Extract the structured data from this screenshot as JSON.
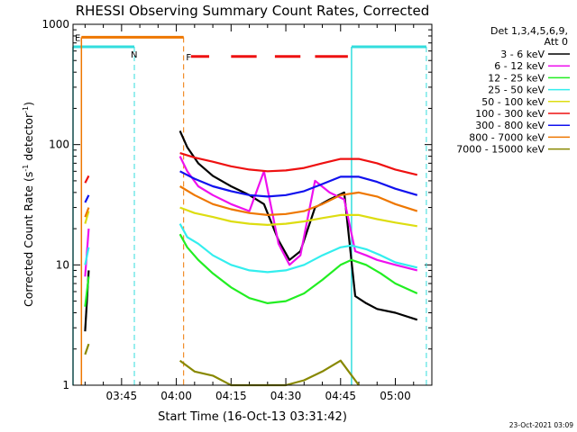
{
  "chart_data": {
    "type": "line",
    "title": "RHESSI Observing Summary Count Rates, Corrected",
    "xlabel": "Start Time (16-Oct-13 03:31:42)",
    "ylabel_main": "Corrected Count Rate (s",
    "ylabel_sup1": "-1",
    "ylabel_mid": " detector",
    "ylabel_sup2": "-1",
    "ylabel_end": ")",
    "footer": "23-Oct-2021 03:09",
    "yscale": "log",
    "xlim": [
      "03:31:42",
      "05:10:00"
    ],
    "ylim": [
      1,
      1000
    ],
    "x_ticks": [
      "03:45",
      "04:00",
      "04:15",
      "04:30",
      "04:45",
      "05:00"
    ],
    "y_ticks": [
      "1",
      "10",
      "100",
      "1000"
    ],
    "legend_header": [
      "Det 1,3,4,5,6,9,",
      "Att 0"
    ],
    "legend_position": "right",
    "flags": [
      {
        "label": "N",
        "color": "#33dddd"
      },
      {
        "label": "E",
        "color": "#ee7700"
      },
      {
        "label": "F",
        "color": "#ee1111"
      }
    ],
    "series": [
      {
        "name": "3 - 6 keV",
        "color": "#000000",
        "x": [
          "03:35",
          "03:36",
          "04:01",
          "04:03",
          "04:06",
          "04:10",
          "04:15",
          "04:20",
          "04:24",
          "04:28",
          "04:31",
          "04:34",
          "04:38",
          "04:42",
          "04:46",
          "04:49",
          "04:52",
          "04:55",
          "05:00",
          "05:06"
        ],
        "y": [
          2.8,
          9,
          130,
          95,
          70,
          55,
          45,
          38,
          32,
          16,
          11,
          13,
          30,
          35,
          40,
          5.5,
          4.8,
          4.3,
          4.0,
          3.5
        ]
      },
      {
        "name": "6 - 12 keV",
        "color": "#ee11ee",
        "x": [
          "03:35",
          "03:36",
          "04:01",
          "04:03",
          "04:06",
          "04:10",
          "04:15",
          "04:20",
          "04:24",
          "04:28",
          "04:31",
          "04:34",
          "04:38",
          "04:42",
          "04:46",
          "04:49",
          "04:52",
          "04:55",
          "05:00",
          "05:06"
        ],
        "y": [
          8,
          20,
          80,
          60,
          45,
          38,
          32,
          28,
          60,
          15,
          10,
          12,
          50,
          40,
          35,
          13,
          12,
          11,
          10,
          9
        ]
      },
      {
        "name": "12 - 25 keV",
        "color": "#22ee22",
        "x": [
          "03:35",
          "03:36",
          "04:01",
          "04:03",
          "04:06",
          "04:10",
          "04:15",
          "04:20",
          "04:25",
          "04:30",
          "04:35",
          "04:40",
          "04:45",
          "04:48",
          "04:52",
          "04:56",
          "05:00",
          "05:06"
        ],
        "y": [
          4.5,
          8,
          18,
          14,
          11,
          8.5,
          6.5,
          5.3,
          4.8,
          5.0,
          5.8,
          7.5,
          10,
          11,
          10,
          8.5,
          7,
          5.8
        ]
      },
      {
        "name": "25 - 50 keV",
        "color": "#33eeee",
        "x": [
          "03:35",
          "03:36",
          "04:01",
          "04:03",
          "04:06",
          "04:10",
          "04:15",
          "04:20",
          "04:25",
          "04:30",
          "04:35",
          "04:40",
          "04:45",
          "04:48",
          "04:52",
          "04:56",
          "05:00",
          "05:06"
        ],
        "y": [
          10,
          14,
          22,
          17,
          15,
          12,
          10,
          9,
          8.7,
          9,
          10,
          12,
          14,
          14.5,
          13.5,
          12,
          10.5,
          9.5
        ]
      },
      {
        "name": "50 - 100 keV",
        "color": "#dddd11",
        "x": [
          "03:35",
          "03:36",
          "04:01",
          "04:05",
          "04:10",
          "04:15",
          "04:20",
          "04:25",
          "04:30",
          "04:35",
          "04:40",
          "04:45",
          "04:50",
          "04:55",
          "05:00",
          "05:06"
        ],
        "y": [
          22,
          28,
          30,
          27,
          25,
          23,
          22,
          21.5,
          22,
          23,
          24.5,
          26,
          26,
          24,
          22.5,
          21
        ]
      },
      {
        "name": "100 - 300 keV",
        "color": "#ee1111",
        "x": [
          "03:35",
          "03:36",
          "04:01",
          "04:05",
          "04:10",
          "04:15",
          "04:20",
          "04:25",
          "04:30",
          "04:35",
          "04:40",
          "04:45",
          "04:50",
          "04:55",
          "05:00",
          "05:06"
        ],
        "y": [
          48,
          55,
          85,
          78,
          72,
          66,
          62,
          60,
          61,
          64,
          70,
          76,
          76,
          70,
          62,
          56
        ]
      },
      {
        "name": "300 - 800 keV",
        "color": "#1111ee",
        "x": [
          "03:35",
          "03:36",
          "04:01",
          "04:05",
          "04:10",
          "04:15",
          "04:20",
          "04:25",
          "04:30",
          "04:35",
          "04:40",
          "04:45",
          "04:50",
          "04:55",
          "05:00",
          "05:06"
        ],
        "y": [
          33,
          38,
          60,
          52,
          45,
          41,
          38,
          37,
          38,
          41,
          47,
          54,
          54,
          49,
          43,
          38
        ]
      },
      {
        "name": "800 - 7000 keV",
        "color": "#ee7700",
        "x": [
          "03:35",
          "03:36",
          "04:01",
          "04:05",
          "04:10",
          "04:15",
          "04:20",
          "04:25",
          "04:30",
          "04:35",
          "04:40",
          "04:45",
          "04:50",
          "04:55",
          "05:00",
          "05:06"
        ],
        "y": [
          25,
          30,
          45,
          38,
          32,
          29,
          27,
          26,
          26.5,
          28,
          32,
          38,
          40,
          37,
          32,
          28
        ]
      },
      {
        "name": "7000 - 15000 keV",
        "color": "#888800",
        "x": [
          "03:35",
          "03:36",
          "04:01",
          "04:05",
          "04:10",
          "04:15",
          "04:20",
          "04:25",
          "04:30",
          "04:35",
          "04:40",
          "04:45",
          "04:50"
        ],
        "y": [
          1.8,
          2.2,
          1.6,
          1.3,
          1.2,
          1.0,
          1.0,
          1.0,
          1.0,
          1.1,
          1.3,
          1.6,
          1.0
        ]
      }
    ]
  }
}
